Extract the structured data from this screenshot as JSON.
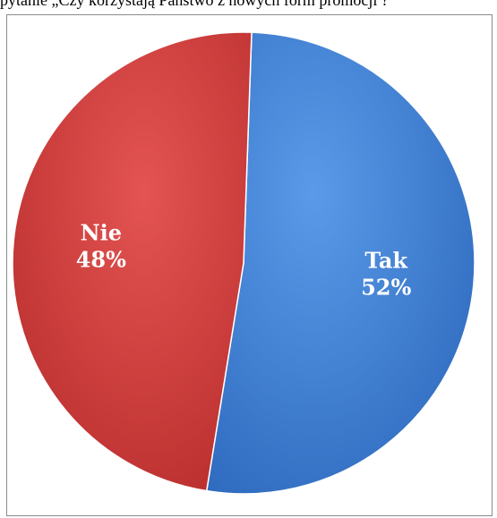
{
  "header": {
    "text": "pytanie „Czy korzystają Państwo z nowych form promocji ?”"
  },
  "chart_data": {
    "type": "pie",
    "categories": [
      "Tak",
      "Nie"
    ],
    "values": [
      52,
      48
    ],
    "value_labels": [
      "52%",
      "48%"
    ],
    "colors": [
      "#3f7fd4",
      "#d23b3a"
    ],
    "legend": "none"
  }
}
